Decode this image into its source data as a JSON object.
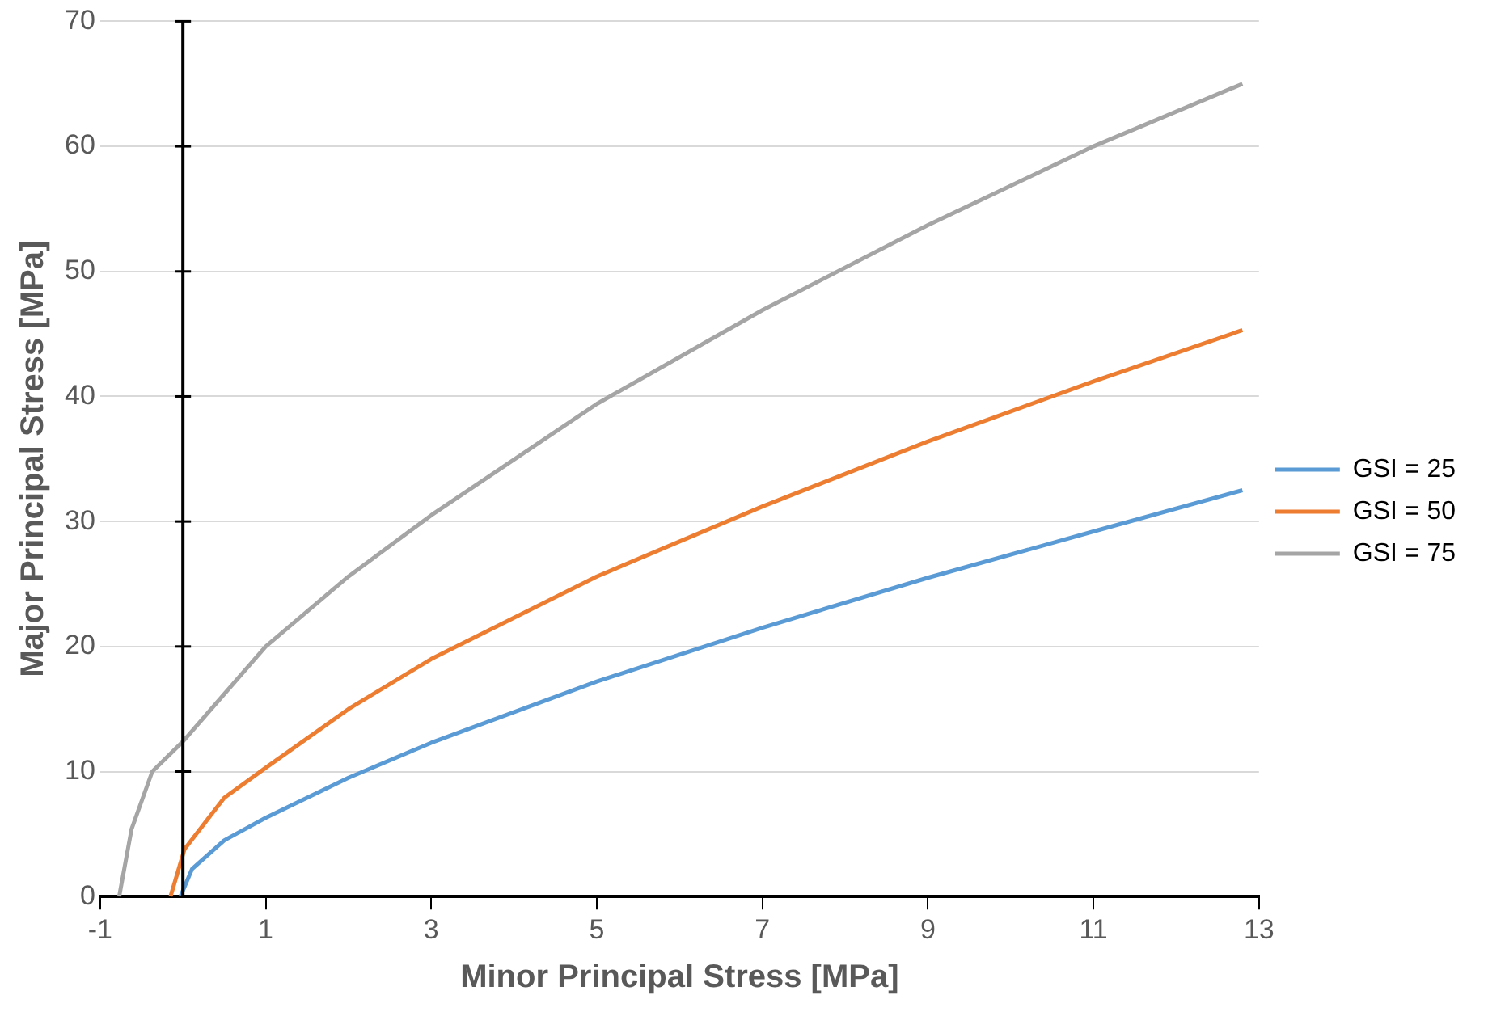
{
  "chart_data": {
    "type": "line",
    "xlabel": "Minor Principal Stress [MPa]",
    "ylabel": "Major Principal Stress [MPa]",
    "xlim": [
      -1,
      13
    ],
    "xticks": [
      -1,
      1,
      3,
      5,
      7,
      9,
      11,
      13
    ],
    "ylim": [
      0,
      70
    ],
    "yticks": [
      0,
      10,
      20,
      30,
      40,
      50,
      60,
      70
    ],
    "grid": "y",
    "legend": "right",
    "marker": "none",
    "line_style": "solid",
    "series": [
      {
        "name": "GSI = 25",
        "color": "#5b9bd5",
        "x": [
          -0.03,
          0.11,
          0.5,
          1,
          2,
          3,
          5,
          7,
          9,
          11,
          12.8
        ],
        "values": [
          0,
          2.2,
          4.5,
          6.3,
          9.5,
          12.3,
          17.2,
          21.5,
          25.5,
          29.2,
          32.5
        ]
      },
      {
        "name": "GSI = 50",
        "color": "#ed7d31",
        "x": [
          -0.15,
          0.02,
          0.5,
          1,
          2,
          3,
          5,
          7,
          9,
          11,
          12.8
        ],
        "values": [
          0,
          3.8,
          7.9,
          10.3,
          15,
          19,
          25.6,
          31.2,
          36.4,
          41.2,
          45.3
        ]
      },
      {
        "name": "GSI = 75",
        "color": "#a5a5a5",
        "x": [
          -0.77,
          -0.62,
          -0.37,
          0,
          1,
          2,
          3,
          5,
          7,
          9,
          11,
          12.8
        ],
        "values": [
          0,
          5.4,
          10,
          12.4,
          20,
          25.6,
          30.5,
          39.4,
          46.9,
          53.7,
          60,
          65
        ]
      }
    ]
  }
}
